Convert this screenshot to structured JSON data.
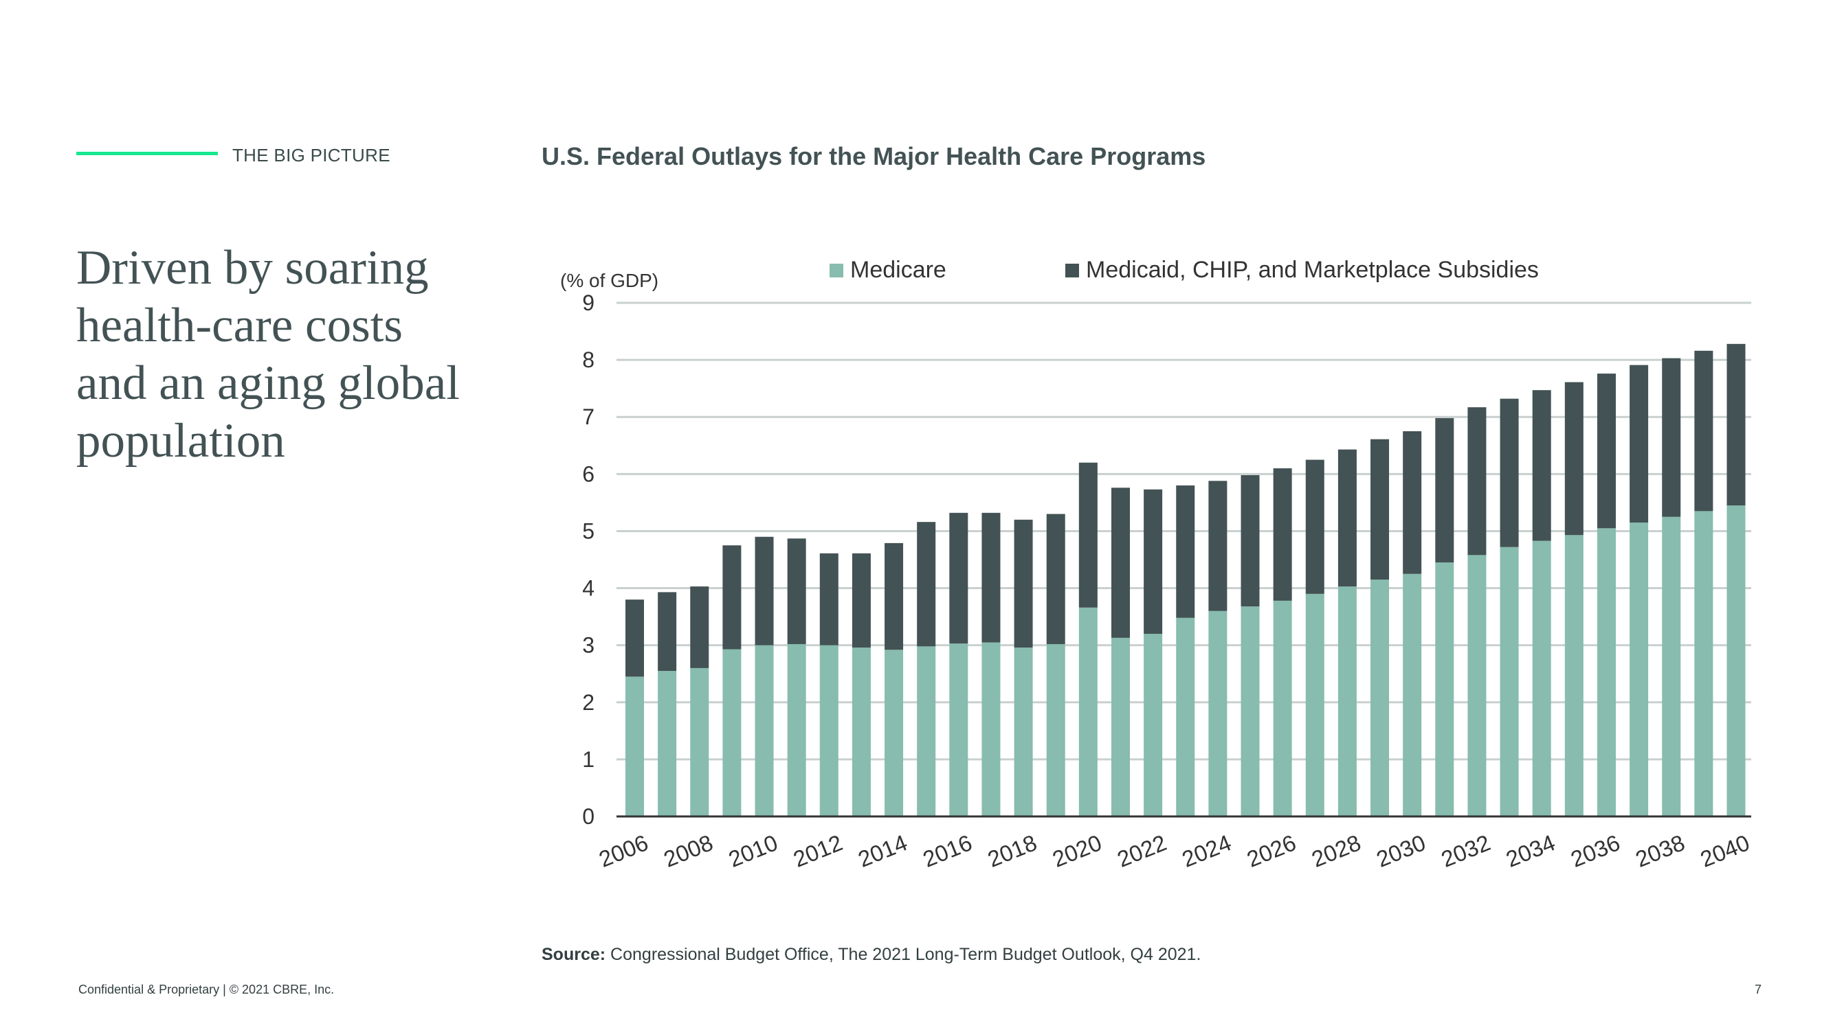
{
  "section_label": "THE BIG PICTURE",
  "headline_lines": [
    "Driven by soaring",
    "health-care costs",
    "and an aging global",
    "population"
  ],
  "source": {
    "label": "Source:",
    "text": "Congressional Budget Office, The 2021 Long-Term Budget Outlook, Q4 2021."
  },
  "footer": "Confidential & Proprietary | © 2021 CBRE, Inc.",
  "page_number": "7",
  "colors": {
    "accent": "#17e88f",
    "medicare": "#87bcae",
    "medicaid": "#435254",
    "gridline": "#c9d0d0",
    "axis": "#333333"
  },
  "chart_data": {
    "type": "bar",
    "stacked": true,
    "title": "U.S. Federal Outlays for the Major Health Care Programs",
    "ylabel": "(% of GDP)",
    "xlabel": "",
    "ylim": [
      0,
      9
    ],
    "yticks": [
      0,
      1,
      2,
      3,
      4,
      5,
      6,
      7,
      8,
      9
    ],
    "grid": true,
    "legend_position": "top",
    "categories": [
      2006,
      2007,
      2008,
      2009,
      2010,
      2011,
      2012,
      2013,
      2014,
      2015,
      2016,
      2017,
      2018,
      2019,
      2020,
      2021,
      2022,
      2023,
      2024,
      2025,
      2026,
      2027,
      2028,
      2029,
      2030,
      2031,
      2032,
      2033,
      2034,
      2035,
      2036,
      2037,
      2038,
      2039,
      2040
    ],
    "xtick_labels": [
      "2006",
      "2008",
      "2010",
      "2012",
      "2014",
      "2016",
      "2018",
      "2020",
      "2022",
      "2024",
      "2026",
      "2028",
      "2030",
      "2032",
      "2034",
      "2036",
      "2038",
      "2040"
    ],
    "series": [
      {
        "name": "Medicare",
        "color": "#87bcae",
        "values": [
          2.45,
          2.55,
          2.6,
          2.93,
          3.0,
          3.02,
          3.0,
          2.96,
          2.92,
          2.98,
          3.03,
          3.05,
          2.96,
          3.02,
          3.66,
          3.13,
          3.2,
          3.48,
          3.6,
          3.68,
          3.78,
          3.9,
          4.03,
          4.15,
          4.25,
          4.45,
          4.58,
          4.72,
          4.83,
          4.93,
          5.05,
          5.15,
          5.25,
          5.35,
          5.45
        ]
      },
      {
        "name": "Medicaid, CHIP, and Marketplace Subsidies",
        "color": "#435254",
        "values": [
          1.35,
          1.38,
          1.43,
          1.82,
          1.9,
          1.85,
          1.61,
          1.65,
          1.87,
          2.18,
          2.29,
          2.27,
          2.24,
          2.28,
          2.54,
          2.63,
          2.53,
          2.32,
          2.28,
          2.3,
          2.32,
          2.35,
          2.4,
          2.46,
          2.5,
          2.53,
          2.59,
          2.6,
          2.64,
          2.68,
          2.71,
          2.76,
          2.78,
          2.81,
          2.83
        ]
      }
    ]
  }
}
